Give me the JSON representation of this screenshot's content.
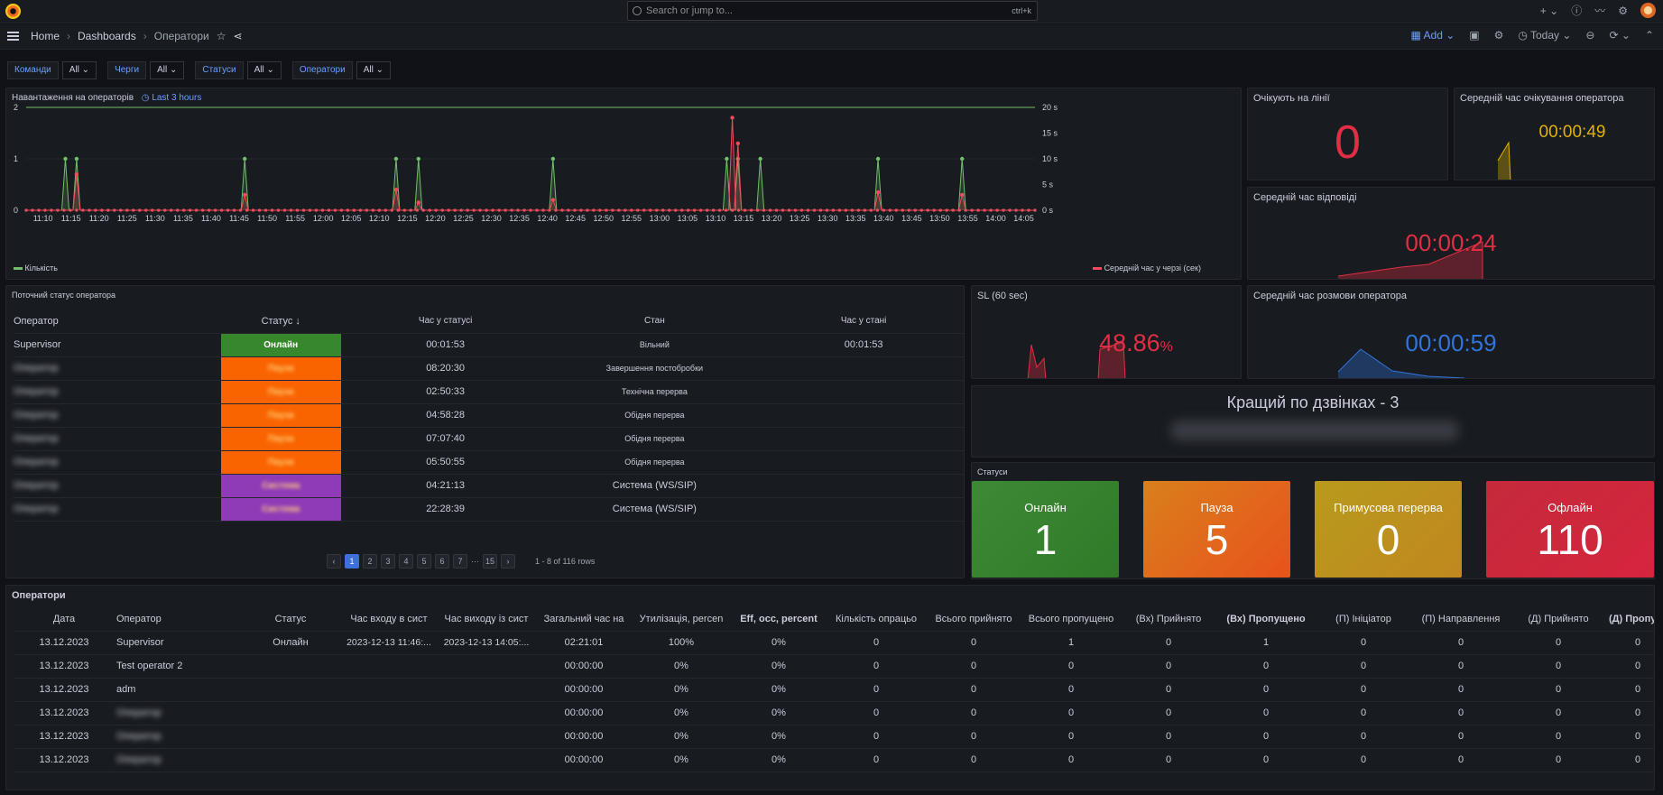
{
  "topbar": {
    "search_placeholder": "Search or jump to...",
    "search_shortcut": "ctrl+k",
    "plus": "+ ⌄"
  },
  "breadcrumbs": {
    "home": "Home",
    "dashboards": "Dashboards",
    "current": "Оператори"
  },
  "toolbar": {
    "add": "Add",
    "time_range": "Today"
  },
  "variables": [
    {
      "label": "Команди",
      "value": "All ⌄"
    },
    {
      "label": "Черги",
      "value": "All ⌄"
    },
    {
      "label": "Статуси",
      "value": "All ⌄"
    },
    {
      "label": "Оператори",
      "value": "All ⌄"
    }
  ],
  "load_panel": {
    "title": "Навантаження на операторів",
    "time_override": "Last 3 hours",
    "legend_left": "Кількість",
    "legend_right": "Середній час у черзі (сек)"
  },
  "chart_data": {
    "type": "line",
    "title": "Навантаження на операторів",
    "x": [
      "11:10",
      "11:15",
      "11:20",
      "11:25",
      "11:30",
      "11:35",
      "11:40",
      "11:45",
      "11:50",
      "11:55",
      "12:00",
      "12:05",
      "12:10",
      "12:15",
      "12:20",
      "12:25",
      "12:30",
      "12:35",
      "12:40",
      "12:45",
      "12:50",
      "12:55",
      "13:00",
      "13:05",
      "13:10",
      "13:15",
      "13:20",
      "13:25",
      "13:30",
      "13:35",
      "13:40",
      "13:45",
      "13:50",
      "13:55",
      "14:00",
      "14:05"
    ],
    "y_left_ticks": [
      "0",
      "1",
      "2"
    ],
    "y_right_ticks": [
      "0 s",
      "5 s",
      "10 s",
      "15 s",
      "20 s"
    ],
    "ylim_left": [
      0,
      2
    ],
    "ylim_right": [
      0,
      20
    ],
    "threshold_left": 2,
    "series": [
      {
        "name": "Кількість",
        "color": "#73bf69",
        "axis": "left",
        "spikes": [
          {
            "t": "11:14",
            "v": 1
          },
          {
            "t": "11:16",
            "v": 1
          },
          {
            "t": "11:46",
            "v": 1
          },
          {
            "t": "12:13",
            "v": 1
          },
          {
            "t": "12:17",
            "v": 1
          },
          {
            "t": "12:41",
            "v": 1
          },
          {
            "t": "13:12",
            "v": 1
          },
          {
            "t": "13:14",
            "v": 1
          },
          {
            "t": "13:18",
            "v": 1
          },
          {
            "t": "13:39",
            "v": 1
          },
          {
            "t": "13:54",
            "v": 1
          }
        ]
      },
      {
        "name": "Середній час у черзі (сек)",
        "color": "#f2495c",
        "axis": "right",
        "spikes": [
          {
            "t": "11:16",
            "v": 7
          },
          {
            "t": "11:46",
            "v": 3
          },
          {
            "t": "12:13",
            "v": 4
          },
          {
            "t": "12:17",
            "v": 1.5
          },
          {
            "t": "12:41",
            "v": 2
          },
          {
            "t": "13:13",
            "v": 18
          },
          {
            "t": "13:14",
            "v": 13
          },
          {
            "t": "13:39",
            "v": 3.5
          },
          {
            "t": "13:54",
            "v": 3
          }
        ]
      }
    ]
  },
  "stat_waiting": {
    "title": "Очікують на лінії",
    "value": "0"
  },
  "stat_avg_wait": {
    "title": "Середній час очікування оператора",
    "value": "00:00:49"
  },
  "stat_answer": {
    "title": "Середній час відповіді",
    "value": "00:00:24"
  },
  "stat_sl": {
    "title": "SL (60 sec)",
    "value": "48.86",
    "unit": "%"
  },
  "stat_talk": {
    "title": "Середній час розмови оператора",
    "value": "00:00:59"
  },
  "best": {
    "title": "Кращий по дзвінках - 3"
  },
  "status_table": {
    "title": "Поточний статус оператора",
    "columns": [
      "Оператор",
      "Статус",
      "Час у статусі",
      "Стан",
      "Час у стані"
    ],
    "rows": [
      {
        "operator": "Supervisor",
        "status": "Онлайн",
        "color": "#37872d",
        "time": "00:01:53",
        "state": "Вільний",
        "state_time": "00:01:53"
      },
      {
        "operator": "Оператор",
        "status": "Пауза",
        "color": "#fa6400",
        "time": "08:20:30",
        "state": "Завершення постобробки",
        "state_time": ""
      },
      {
        "operator": "Оператор",
        "status": "Пауза",
        "color": "#fa6400",
        "time": "02:50:33",
        "state": "Технічна перерва",
        "state_time": ""
      },
      {
        "operator": "Оператор",
        "status": "Пауза",
        "color": "#fa6400",
        "time": "04:58:28",
        "state": "Обідня перерва",
        "state_time": ""
      },
      {
        "operator": "Оператор",
        "status": "Пауза",
        "color": "#fa6400",
        "time": "07:07:40",
        "state": "Обідня перерва",
        "state_time": ""
      },
      {
        "operator": "Оператор",
        "status": "Пауза",
        "color": "#fa6400",
        "time": "05:50:55",
        "state": "Обідня перерва",
        "state_time": ""
      },
      {
        "operator": "Оператор",
        "status": "Система",
        "color": "#8f3bb8",
        "time": "04:21:13",
        "state": "Система (WS/SIP)",
        "state_time": ""
      },
      {
        "operator": "Оператор",
        "status": "Система",
        "color": "#8f3bb8",
        "time": "22:28:39",
        "state": "Система (WS/SIP)",
        "state_time": ""
      }
    ],
    "pages": [
      "1",
      "2",
      "3",
      "4",
      "5",
      "6",
      "7",
      "···",
      "15"
    ],
    "rows_info": "1 - 8 of 116 rows"
  },
  "statuses": {
    "title": "Статуси",
    "items": [
      {
        "label": "Онлайн",
        "value": "1",
        "color": "#37872d"
      },
      {
        "label": "Пауза",
        "value": "5",
        "color": "#e8761b"
      },
      {
        "label": "Примусова перерва",
        "value": "0",
        "color": "#c4a41c"
      },
      {
        "label": "Офлайн",
        "value": "110",
        "color": "#d02a3b"
      }
    ]
  },
  "operators_table": {
    "title": "Оператори",
    "columns": [
      "Дата",
      "Оператор",
      "Статус",
      "Час входу в сист",
      "Час виходу із сист",
      "Загальний час на",
      "Утилізація, percen",
      "Eff, occ, percent",
      "Кількість опрацьо",
      "Всього прийнято",
      "Всього пропущено",
      "(Вх) Прийнято",
      "(Вх) Пропущено",
      "(П) Ініціатор",
      "(П) Направлення",
      "(Д) Прийнято",
      "(Д) Пропуще"
    ],
    "rows": [
      [
        "13.12.2023",
        "Supervisor",
        "Онлайн",
        "2023-12-13 11:46:...",
        "2023-12-13 14:05:...",
        "02:21:01",
        "100%",
        "0%",
        "0",
        "0",
        "1",
        "0",
        "1",
        "0",
        "0",
        "0",
        "0"
      ],
      [
        "13.12.2023",
        "Test operator 2",
        "",
        "",
        "",
        "00:00:00",
        "0%",
        "0%",
        "0",
        "0",
        "0",
        "0",
        "0",
        "0",
        "0",
        "0",
        "0"
      ],
      [
        "13.12.2023",
        "adm",
        "",
        "",
        "",
        "00:00:00",
        "0%",
        "0%",
        "0",
        "0",
        "0",
        "0",
        "0",
        "0",
        "0",
        "0",
        "0"
      ],
      [
        "13.12.2023",
        "Оператор",
        "",
        "",
        "",
        "00:00:00",
        "0%",
        "0%",
        "0",
        "0",
        "0",
        "0",
        "0",
        "0",
        "0",
        "0",
        "0"
      ],
      [
        "13.12.2023",
        "Оператор",
        "",
        "",
        "",
        "00:00:00",
        "0%",
        "0%",
        "0",
        "0",
        "0",
        "0",
        "0",
        "0",
        "0",
        "0",
        "0"
      ],
      [
        "13.12.2023",
        "Оператор",
        "",
        "",
        "",
        "00:00:00",
        "0%",
        "0%",
        "0",
        "0",
        "0",
        "0",
        "0",
        "0",
        "0",
        "0",
        "0"
      ]
    ]
  }
}
